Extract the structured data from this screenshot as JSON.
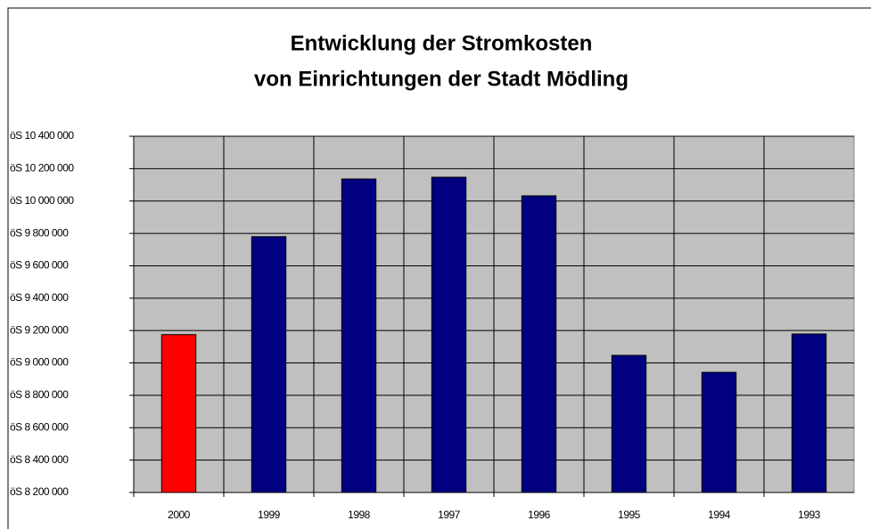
{
  "chart_data": {
    "type": "bar",
    "title": [
      "Entwicklung der Stromkosten",
      "von Einrichtungen der Stadt Mödling"
    ],
    "categories": [
      "2000",
      "1999",
      "1998",
      "1997",
      "1996",
      "1995",
      "1994",
      "1993"
    ],
    "values": [
      9175000,
      9780000,
      10136000,
      10147000,
      10032000,
      9047000,
      8942000,
      9179000
    ],
    "colors": [
      "#ff0000",
      "#000080",
      "#000080",
      "#000080",
      "#000080",
      "#000080",
      "#000080",
      "#000080"
    ],
    "ylim": [
      8200000,
      10400000
    ],
    "yticks": [
      {
        "value": 8200000,
        "label": "öS 8 200 000"
      },
      {
        "value": 8400000,
        "label": "öS 8 400 000"
      },
      {
        "value": 8600000,
        "label": "öS 8 600 000"
      },
      {
        "value": 8800000,
        "label": "öS 8 800 000"
      },
      {
        "value": 9000000,
        "label": "öS 9 000 000"
      },
      {
        "value": 9200000,
        "label": "öS 9 200 000"
      },
      {
        "value": 9400000,
        "label": "öS 9 400 000"
      },
      {
        "value": 9600000,
        "label": "öS 9 600 000"
      },
      {
        "value": 9800000,
        "label": "öS 9 800 000"
      },
      {
        "value": 10000000,
        "label": "öS 10 000 000"
      },
      {
        "value": 10200000,
        "label": "öS 10 200 000"
      },
      {
        "value": 10400000,
        "label": "öS 10 400 000"
      }
    ],
    "grid": true,
    "plot_background": "#c0c0c0"
  }
}
